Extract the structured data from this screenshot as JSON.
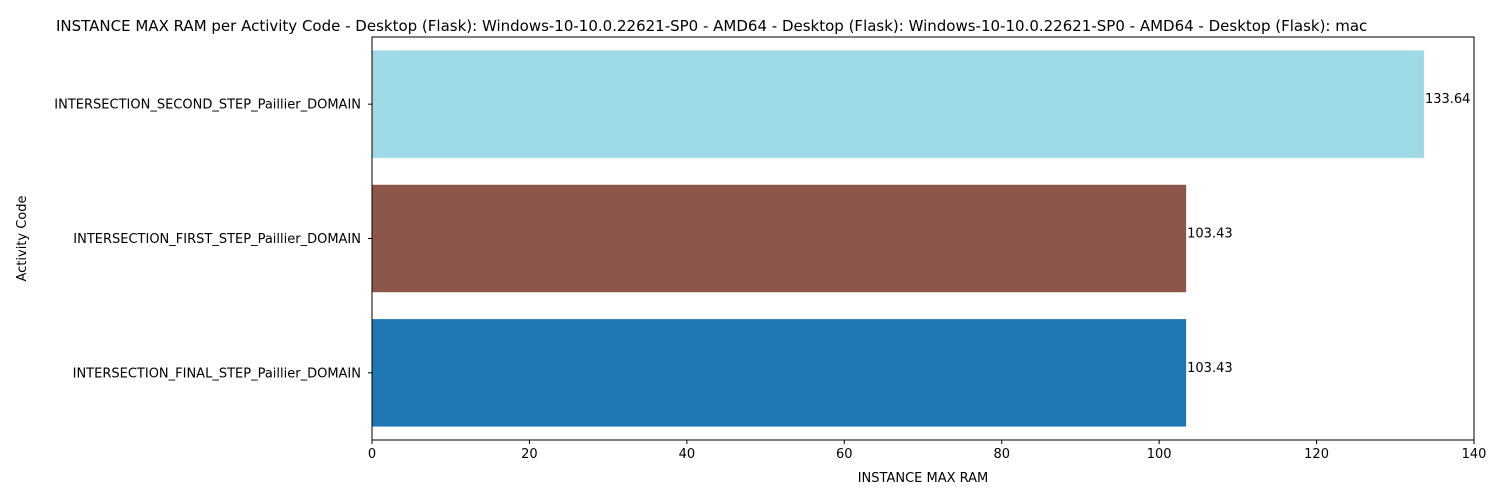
{
  "chart_data": {
    "type": "bar",
    "orientation": "horizontal",
    "title": "INSTANCE MAX RAM per Activity Code - Desktop (Flask): Windows-10-10.0.22621-SP0 - AMD64 - Desktop (Flask): Windows-10-10.0.22621-SP0 - AMD64 - Desktop (Flask): mac",
    "xlabel": "INSTANCE MAX RAM",
    "ylabel": "Activity Code",
    "xlim": [
      0,
      140
    ],
    "x_ticks": [
      0,
      20,
      40,
      60,
      80,
      100,
      120,
      140
    ],
    "grid": false,
    "categories": [
      "INTERSECTION_SECOND_STEP_Paillier_DOMAIN",
      "INTERSECTION_FIRST_STEP_Paillier_DOMAIN",
      "INTERSECTION_FINAL_STEP_Paillier_DOMAIN"
    ],
    "values": [
      133.64,
      103.43,
      103.43
    ],
    "value_labels": [
      "133.64",
      "103.43",
      "103.43"
    ],
    "colors": [
      "#9edae5",
      "#8c564b",
      "#1f77b4"
    ]
  }
}
